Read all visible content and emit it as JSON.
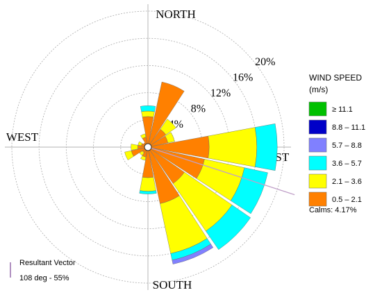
{
  "chart_data": {
    "type": "windrose",
    "directions": [
      "N",
      "NNE",
      "NE",
      "ENE",
      "E",
      "ESE",
      "SE",
      "SSE",
      "S",
      "SSW",
      "SW",
      "WSW",
      "W",
      "WNW",
      "NW",
      "NNW"
    ],
    "cardinal_labels": [
      "NORTH",
      "EAST",
      "SOUTH",
      "WEST"
    ],
    "legend_title": "WIND SPEED",
    "legend_unit": "(m/s)",
    "series": [
      {
        "name": "≥ 11.1",
        "color": "#00c000",
        "values": [
          0,
          0,
          0,
          0,
          0,
          0,
          0,
          0,
          0,
          0,
          0,
          0,
          0,
          0,
          0,
          0
        ]
      },
      {
        "name": "8.8 – 11.1",
        "color": "#0000c8",
        "values": [
          0,
          0,
          0,
          0,
          0,
          0,
          0,
          0,
          0,
          0,
          0,
          0,
          0,
          0,
          0,
          0
        ]
      },
      {
        "name": "5.7 – 8.8",
        "color": "#8080ff",
        "values": [
          0,
          0,
          0,
          0,
          0,
          0,
          0,
          0.6,
          0,
          0,
          0,
          0,
          0,
          0,
          0,
          0
        ]
      },
      {
        "name": "3.6 – 5.7",
        "color": "#00ffff",
        "values": [
          0.8,
          0,
          0,
          0,
          3,
          3.5,
          3.3,
          1,
          0.4,
          0,
          0,
          0,
          0,
          0,
          0,
          0
        ]
      },
      {
        "name": "2.1 – 3.6",
        "color": "#ffff00",
        "values": [
          0.8,
          0,
          1.8,
          1,
          7,
          6,
          8.5,
          7.5,
          2,
          0.5,
          0.5,
          1,
          1,
          0.5,
          0,
          0.5
        ]
      },
      {
        "name": "0.5 – 2.1",
        "color": "#ff8000",
        "values": [
          4.5,
          9.8,
          3.2,
          3,
          9,
          8.5,
          6.5,
          8.5,
          4.5,
          1.5,
          1,
          2.5,
          1.5,
          1,
          0.8,
          1.5
        ]
      }
    ],
    "rlim": [
      0,
      20
    ],
    "rticks": [
      {
        "value": 4,
        "label": "4%"
      },
      {
        "value": 8,
        "label": "8%"
      },
      {
        "value": 12,
        "label": "12%"
      },
      {
        "value": 16,
        "label": "16%"
      },
      {
        "value": 20,
        "label": "20%"
      }
    ],
    "calms": {
      "label": "Calms: 4.17%",
      "value": 4.17
    },
    "resultant": {
      "title": "Resultant Vector",
      "text": "108 deg - 55%",
      "direction": 108
    }
  }
}
